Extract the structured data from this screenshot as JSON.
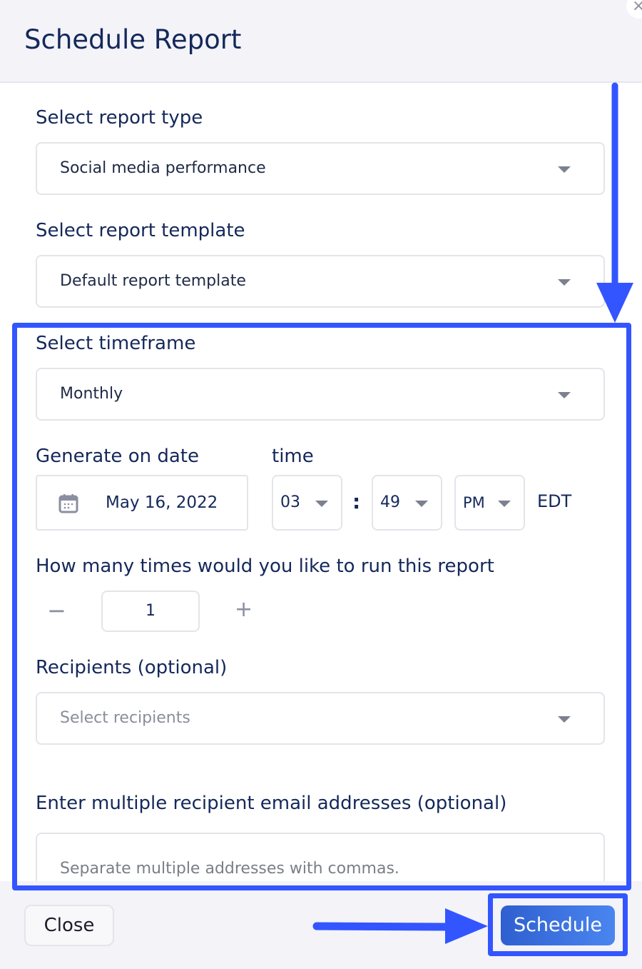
{
  "dialog": {
    "title": "Schedule Report",
    "close_icon": "×"
  },
  "report_type": {
    "label": "Select report type",
    "value": "Social media performance"
  },
  "report_template": {
    "label": "Select report template",
    "value": "Default report template"
  },
  "timeframe": {
    "label": "Select timeframe",
    "value": "Monthly"
  },
  "date": {
    "label": "Generate on date",
    "value": "May 16, 2022"
  },
  "time": {
    "label": "time",
    "hour": "03",
    "separator": ":",
    "minute": "49",
    "ampm": "PM",
    "timezone": "EDT"
  },
  "runs": {
    "label": "How many times would you like to run this report",
    "value": "1",
    "minus": "−",
    "plus": "+"
  },
  "recipients": {
    "label": "Recipients (optional)",
    "placeholder": "Select recipients"
  },
  "emails": {
    "label": "Enter multiple recipient email addresses (optional)",
    "placeholder": "Separate multiple addresses with commas."
  },
  "footer": {
    "close_label": "Close",
    "schedule_label": "Schedule"
  },
  "colors": {
    "annotation": "#3355ff",
    "title": "#14285a",
    "primary_button": "#3a6fe0"
  }
}
